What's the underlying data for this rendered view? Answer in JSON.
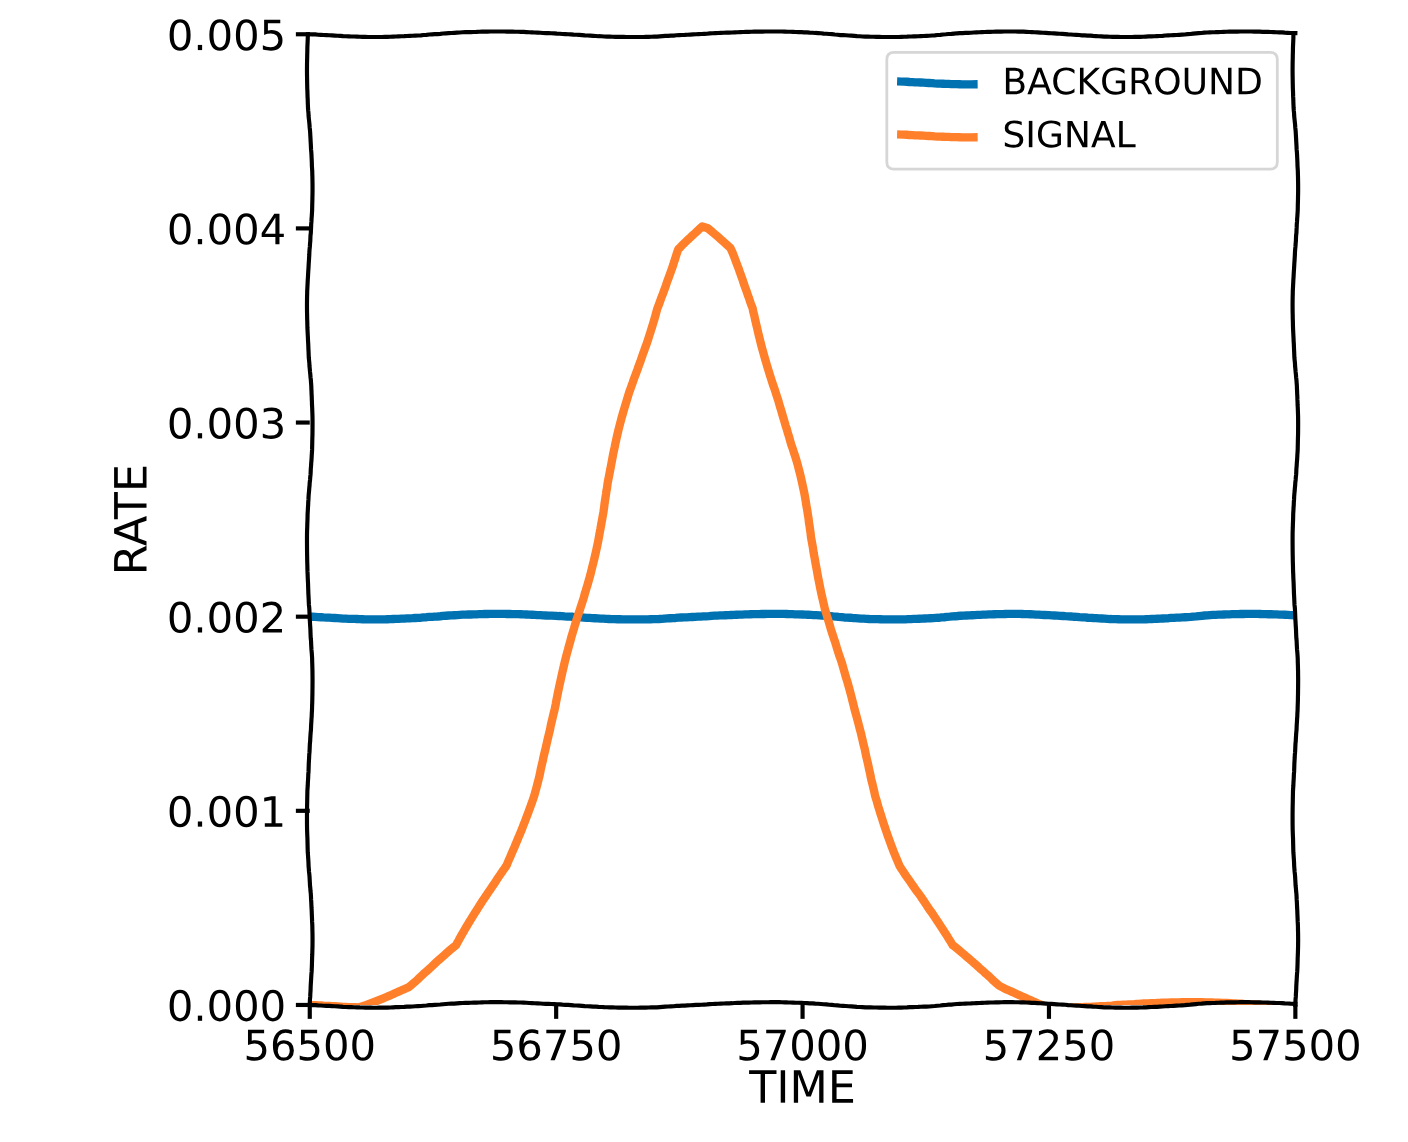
{
  "chart_data": {
    "type": "line",
    "xlabel": "TIME",
    "ylabel": "RATE",
    "xlim": [
      56500,
      57500
    ],
    "xticks": [
      56500,
      56750,
      57000,
      57250,
      57500
    ],
    "ylim": [
      0,
      0.005
    ],
    "yticks": [
      {
        "value": 0,
        "label": "0.000"
      },
      {
        "value": 0.001,
        "label": "0.001"
      },
      {
        "value": 0.002,
        "label": "0.002"
      },
      {
        "value": 0.003,
        "label": "0.003"
      },
      {
        "value": 0.004,
        "label": "0.004"
      },
      {
        "value": 0.005,
        "label": "0.005"
      }
    ],
    "legend": "top right",
    "series": [
      {
        "name": "BACKGROUND",
        "color": "#0072b2",
        "x": [
          56500,
          56750,
          57000,
          57250,
          57500
        ],
        "values": [
          0.002,
          0.002,
          0.002,
          0.002,
          0.002
        ]
      },
      {
        "name": "SIGNAL",
        "color": "#ff7f2a",
        "x": [
          56500,
          56550,
          56600,
          56650,
          56700,
          56725,
          56750,
          56775,
          56800,
          56825,
          56850,
          56875,
          56900,
          56925,
          56950,
          56975,
          57000,
          57025,
          57050,
          57075,
          57100,
          57150,
          57200,
          57250,
          57300,
          57400,
          57500
        ],
        "values": [
          0,
          0,
          0.0001,
          0.0003,
          0.00072,
          0.00108,
          0.00152,
          0.00205,
          0.00262,
          0.00315,
          0.00359,
          0.00389,
          0.004,
          0.00389,
          0.00359,
          0.00315,
          0.00262,
          0.00205,
          0.00152,
          0.00108,
          0.00072,
          0.0003,
          0.0001,
          0,
          0,
          0,
          0
        ]
      }
    ]
  }
}
